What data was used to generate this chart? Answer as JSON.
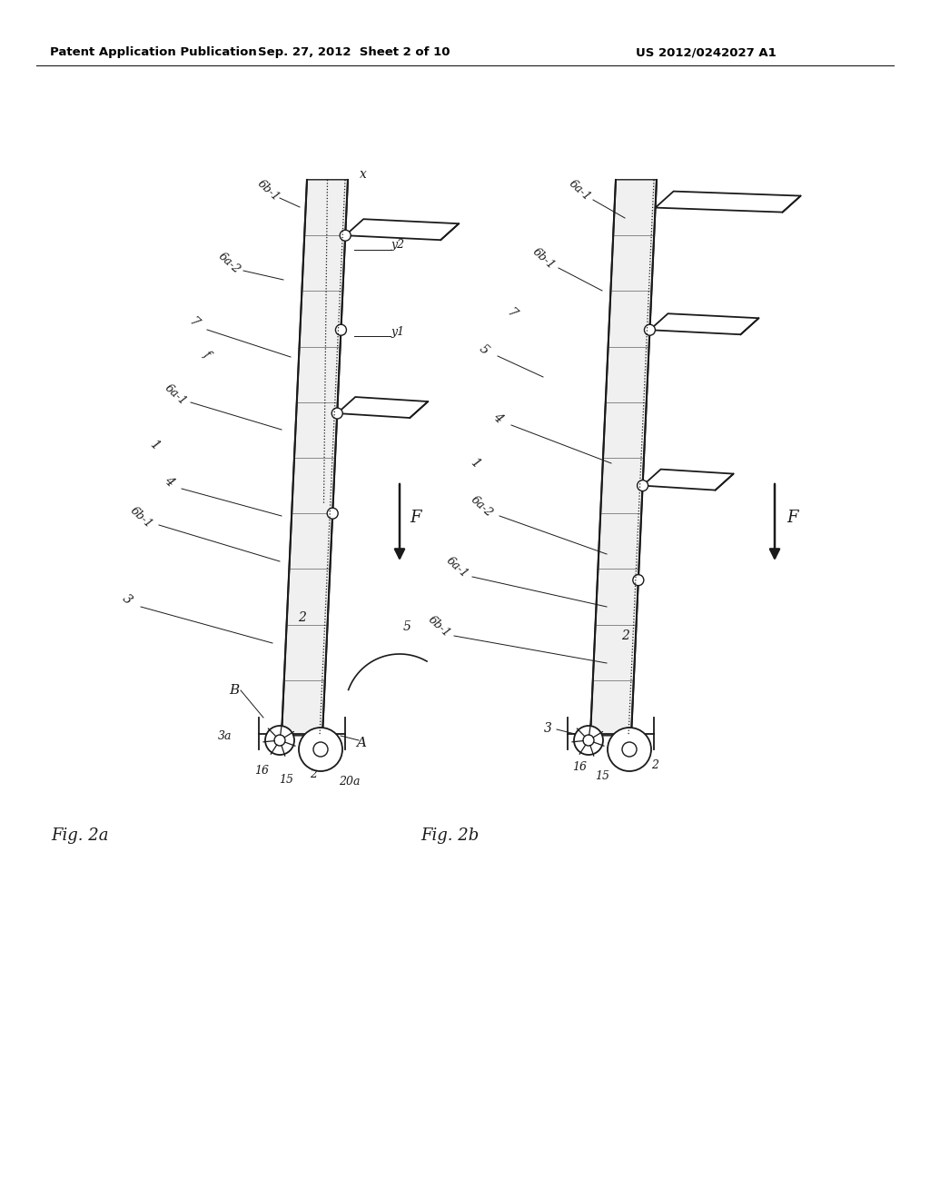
{
  "bg_color": "#ffffff",
  "header_left": "Patent Application Publication",
  "header_mid": "Sep. 27, 2012  Sheet 2 of 10",
  "header_right": "US 2012/0242027 A1",
  "fig2a_label": "Fig. 2a",
  "fig2b_label": "Fig. 2b",
  "line_color": "#1a1a1a",
  "hatch_color": "#555555"
}
